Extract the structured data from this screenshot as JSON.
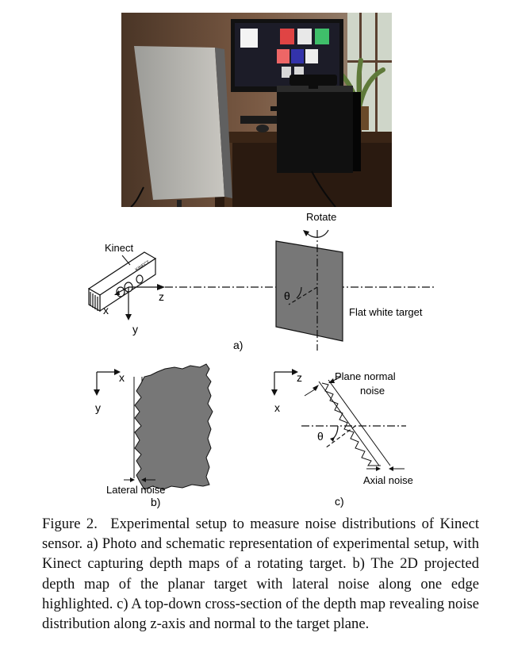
{
  "panel_a": {
    "kinect_label": "Kinect",
    "kinect_logo": "KINECT",
    "x_axis": "x",
    "y_axis": "y",
    "z_axis": "z",
    "rotate_label": "Rotate",
    "theta": "θ",
    "target_label": "Flat white target",
    "sublabel": "a)"
  },
  "panel_b": {
    "x_axis": "x",
    "y_axis": "y",
    "lateral_noise_label": "Lateral noise",
    "sublabel": "b)"
  },
  "panel_c": {
    "z_axis": "z",
    "x_axis": "x",
    "plane_normal_line1": "Plane normal",
    "plane_normal_line2": "noise",
    "theta": "θ",
    "axial_noise_label": "Axial noise",
    "sublabel": "c)"
  },
  "caption": {
    "figure_label": "Figure 2.",
    "text": "Experimental setup to measure noise distributions of Kinect sensor. a) Photo and schematic representation of experimental setup, with Kinect capturing depth maps of a rotating target. b) The 2D projected depth map of the planar target with lateral noise along one edge highlighted. c) A top-down cross-section of the depth map revealing noise distribution along z-axis and normal to the target plane."
  },
  "colors": {
    "target_fill": "#777777",
    "line": "#111111",
    "photo_wall": "#6f4f3a",
    "photo_desk": "#3a2516"
  }
}
